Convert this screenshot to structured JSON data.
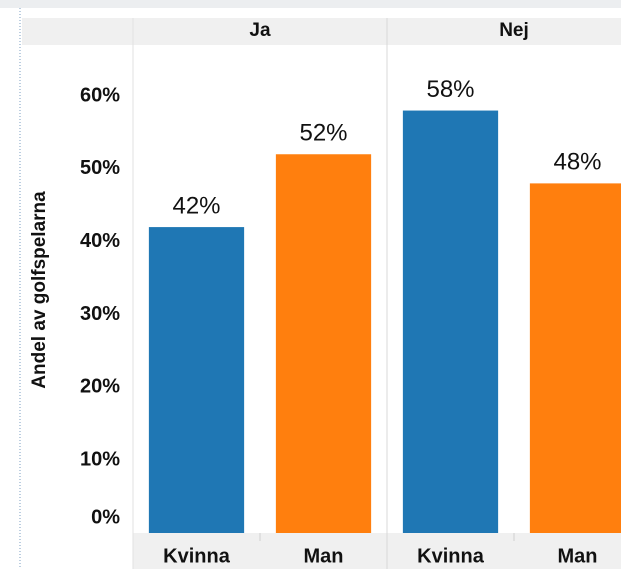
{
  "chart_data": {
    "type": "bar",
    "y_label": "Andel av golfspelarna",
    "facets": [
      {
        "name": "Ja",
        "categories": [
          "Kvinna",
          "Man"
        ],
        "values": [
          42,
          52
        ],
        "value_labels": [
          "42%",
          "52%"
        ]
      },
      {
        "name": "Nej",
        "categories": [
          "Kvinna",
          "Man"
        ],
        "values": [
          58,
          48
        ],
        "value_labels": [
          "58%",
          "48%"
        ]
      }
    ],
    "colors": [
      "#1f77b4",
      "#ff7f0e"
    ],
    "ylim": [
      0,
      67
    ],
    "yticks": [
      {
        "value": 0,
        "label": "0%"
      },
      {
        "value": 10,
        "label": "10%"
      },
      {
        "value": 20,
        "label": "20%"
      },
      {
        "value": 30,
        "label": "30%"
      },
      {
        "value": 40,
        "label": "40%"
      },
      {
        "value": 50,
        "label": "50%"
      },
      {
        "value": 60,
        "label": "60%"
      }
    ],
    "grid": false
  }
}
